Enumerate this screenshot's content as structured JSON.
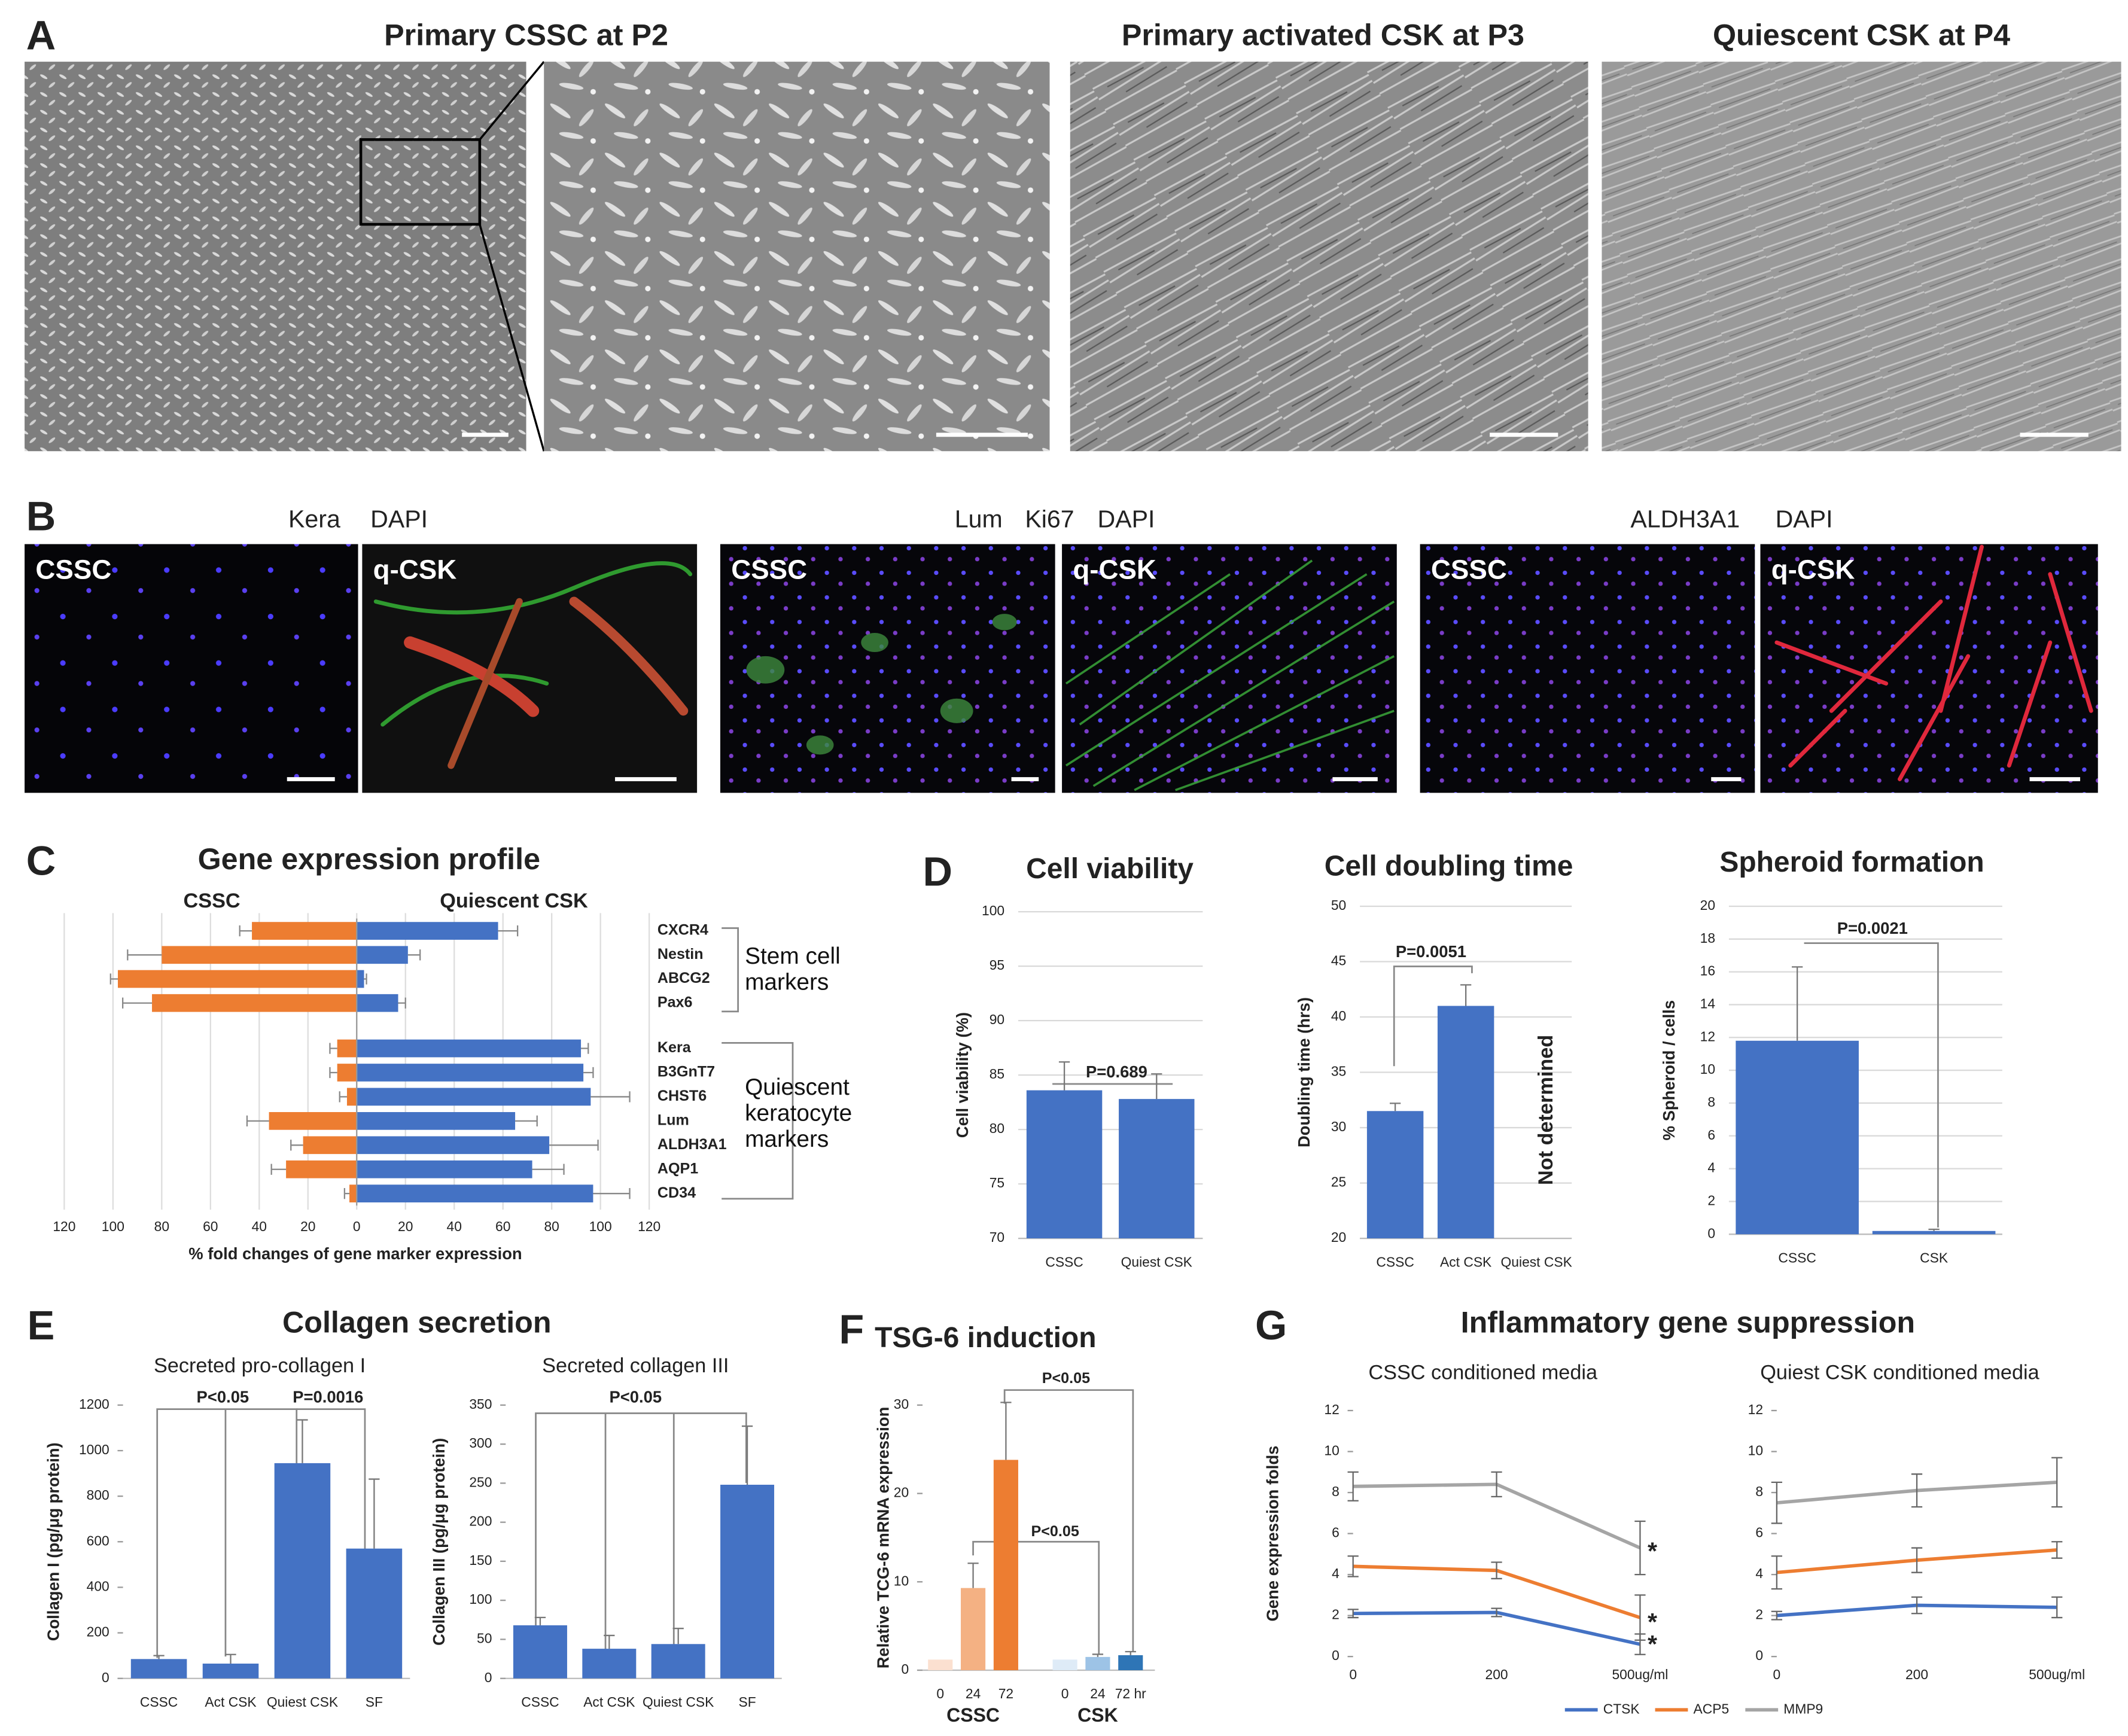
{
  "panels": {
    "labels": [
      "A",
      "B",
      "C",
      "D",
      "E",
      "F",
      "G"
    ],
    "a_titles": [
      "Primary CSSC at P2",
      "Primary activated CSK at P3",
      "Quiescent CSK at P4"
    ],
    "b_stains": [
      [
        {
          "text": "Kera",
          "color": "#e02828"
        },
        {
          "text": "DAPI",
          "color": "#3050d8"
        }
      ],
      [
        {
          "text": "Lum",
          "color": "#22b822"
        },
        {
          "text": "Ki67",
          "color": "#e02828"
        },
        {
          "text": "DAPI",
          "color": "#3050d8"
        }
      ],
      [
        {
          "text": "ALDH3A1",
          "color": "#e02828"
        },
        {
          "text": "DAPI",
          "color": "#3050d8"
        }
      ]
    ],
    "b_image_labels": [
      "CSSC",
      "q-CSK",
      "CSSC",
      "q-CSK",
      "CSSC",
      "q-CSK"
    ],
    "e_title": "Collagen secretion",
    "g_title": "Inflammatory gene suppression"
  },
  "chart_data": [
    {
      "type": "diverging_bar",
      "title": "Gene expression profile",
      "xlabel": "% fold changes of gene marker expression",
      "categories": [
        "CXCR4",
        "Nestin",
        "ABCG2",
        "Pax6",
        "Kera",
        "B3GnT7",
        "CHST6",
        "Lum",
        "ALDH3A1",
        "AQP1",
        "CD34"
      ],
      "series": [
        {
          "name": "CSSC",
          "color": "#ed7d31",
          "side": "left",
          "values": [
            43,
            80,
            98,
            84,
            8,
            8,
            4,
            36,
            22,
            29,
            3
          ],
          "errors": [
            5,
            14,
            3,
            12,
            3,
            3,
            3,
            9,
            5,
            6,
            2
          ]
        },
        {
          "name": "Quiescent CSK",
          "color": "#4472c4",
          "side": "right",
          "values": [
            58,
            21,
            3,
            17,
            92,
            93,
            96,
            65,
            79,
            72,
            97
          ],
          "errors": [
            8,
            5,
            1,
            3,
            3,
            4,
            16,
            9,
            20,
            13,
            15
          ]
        }
      ],
      "groups": [
        "Stem cell markers",
        "Quiescent keratocyte markers"
      ],
      "xlim": [
        -120,
        120
      ],
      "xticks": [
        {
          "value": -120,
          "label": "120"
        },
        {
          "value": -100,
          "label": "100"
        },
        {
          "value": -80,
          "label": "80"
        },
        {
          "value": -60,
          "label": "60"
        },
        {
          "value": -40,
          "label": "40"
        },
        {
          "value": -20,
          "label": "20"
        },
        0,
        20,
        40,
        60,
        80,
        100,
        120
      ],
      "grid": true
    },
    {
      "type": "bar",
      "title": "Cell viability",
      "ylabel": "Cell viability (%)",
      "categories": [
        "CSSC",
        "Quiest CSK"
      ],
      "values": [
        83.6,
        82.8
      ],
      "errors": [
        2.6,
        2.3
      ],
      "color": "#4472c4",
      "ylim": [
        70,
        100
      ],
      "yticks": [
        70,
        75,
        80,
        85,
        90,
        95,
        100
      ],
      "grid": true,
      "annotations": [
        "P=0.689"
      ]
    },
    {
      "type": "bar",
      "title": "Cell doubling time",
      "ylabel": "Doubling time (hrs)",
      "categories": [
        "CSSC",
        "Act CSK",
        "Quiest CSK"
      ],
      "values": [
        31.5,
        41,
        null
      ],
      "errors": [
        0.7,
        1.9,
        null
      ],
      "color": "#4472c4",
      "ylim": [
        20,
        50
      ],
      "yticks": [
        20,
        25,
        30,
        35,
        40,
        45,
        50
      ],
      "grid": true,
      "annotations": [
        "P=0.0051",
        "Not determined"
      ]
    },
    {
      "type": "bar",
      "title": "Spheroid formation",
      "ylabel": "% Spheroid / cells",
      "categories": [
        "CSSC",
        "CSK"
      ],
      "values": [
        11.8,
        0.2
      ],
      "errors": [
        4.5,
        0.1
      ],
      "color": "#4472c4",
      "ylim": [
        0,
        20
      ],
      "yticks": [
        0,
        2,
        4,
        6,
        8,
        10,
        12,
        14,
        16,
        18,
        20
      ],
      "grid": true,
      "annotations": [
        "P=0.0021"
      ]
    },
    {
      "type": "bar",
      "subtitle": "Secreted pro-collagen I",
      "ylabel": "Collagen I (pg/μg protein)",
      "categories": [
        "CSSC",
        "Act CSK",
        "Quiest CSK",
        "SF"
      ],
      "values": [
        85,
        65,
        945,
        570
      ],
      "errors": [
        15,
        40,
        190,
        305
      ],
      "color": "#4472c4",
      "ylim": [
        0,
        1200
      ],
      "yticks": [
        0,
        200,
        400,
        600,
        800,
        1000,
        1200
      ],
      "grid": false,
      "annotations": [
        "P<0.05",
        "P=0.0016"
      ]
    },
    {
      "type": "bar",
      "subtitle": "Secreted collagen III",
      "ylabel": "Collagen III (pg/μg protein)",
      "categories": [
        "CSSC",
        "Act CSK",
        "Quiest CSK",
        "SF"
      ],
      "values": [
        68,
        38,
        44,
        248
      ],
      "errors": [
        10,
        17,
        20,
        75
      ],
      "color": "#4472c4",
      "ylim": [
        0,
        350
      ],
      "yticks": [
        0,
        50,
        100,
        150,
        200,
        250,
        300,
        350
      ],
      "grid": false,
      "annotations": [
        "P<0.05"
      ]
    },
    {
      "type": "bar",
      "title": "TSG-6 induction",
      "ylabel": "Relative TCG-6 mRNA expression",
      "categories": [
        "0",
        "24",
        "72",
        "0",
        "24",
        "72 hr"
      ],
      "groups": [
        "CSSC",
        "CSK"
      ],
      "values": [
        1.2,
        9.3,
        23.8,
        1.2,
        1.5,
        1.7
      ],
      "errors": [
        null,
        2.8,
        6.5,
        null,
        0.3,
        0.4
      ],
      "colors": [
        "#fbe0d0",
        "#f4b183",
        "#ed7d31",
        "#deebf7",
        "#9dc3e6",
        "#2e75b6"
      ],
      "ylim": [
        0,
        30
      ],
      "yticks": [
        0,
        10,
        20,
        30
      ],
      "grid": false,
      "annotations": [
        "P<0.05",
        "P<0.05"
      ]
    },
    {
      "type": "line",
      "subtitle": "CSSC conditioned media",
      "ylabel": "Gene expression folds",
      "categories": [
        "0",
        "200",
        "500ug/ml"
      ],
      "series": [
        {
          "name": "CTSK",
          "color": "#4472c4",
          "values": [
            2.1,
            2.15,
            0.6
          ],
          "errors": [
            0.2,
            0.2,
            0.5
          ]
        },
        {
          "name": "ACP5",
          "color": "#ed7d31",
          "values": [
            4.4,
            4.2,
            1.9
          ],
          "errors": [
            0.5,
            0.4,
            1.1
          ]
        },
        {
          "name": "MMP9",
          "color": "#a5a5a5",
          "values": [
            8.3,
            8.4,
            5.3
          ],
          "errors": [
            0.7,
            0.6,
            1.3
          ]
        }
      ],
      "ylim": [
        0,
        12
      ],
      "yticks": [
        0,
        2,
        4,
        6,
        8,
        10,
        12
      ],
      "grid": false,
      "annotations": [
        "*",
        "*",
        "*"
      ]
    },
    {
      "type": "line",
      "subtitle": "Quiest CSK conditioned media",
      "categories": [
        "0",
        "200",
        "500ug/ml"
      ],
      "series": [
        {
          "color": "#4472c4",
          "values": [
            2.0,
            2.5,
            2.4
          ],
          "errors": [
            0.2,
            0.4,
            0.5
          ]
        },
        {
          "color": "#ed7d31",
          "values": [
            4.1,
            4.7,
            5.2
          ],
          "errors": [
            0.8,
            0.6,
            0.4
          ]
        },
        {
          "color": "#a5a5a5",
          "values": [
            7.5,
            8.1,
            8.5
          ],
          "errors": [
            1.0,
            0.8,
            1.2
          ]
        }
      ],
      "ylim": [
        0,
        12
      ],
      "yticks": [
        0,
        2,
        4,
        6,
        8,
        10,
        12
      ],
      "grid": false
    }
  ]
}
